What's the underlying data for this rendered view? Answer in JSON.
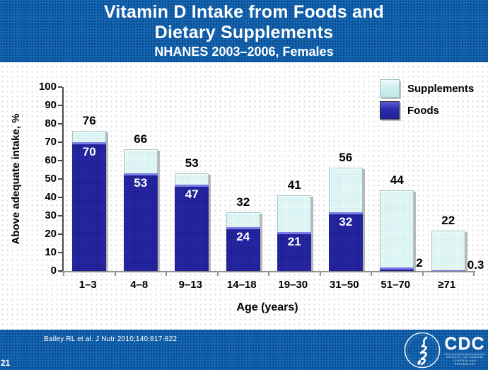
{
  "header": {
    "title_line1": "Vitamin D Intake from Foods and",
    "title_line2": "Dietary Supplements",
    "subtitle": "NHANES 2003–2006, Females"
  },
  "chart_data": {
    "type": "bar",
    "subtype": "stacked",
    "title": "Vitamin D Intake from Foods and Dietary Supplements, NHANES 2003–2006, Females",
    "categories": [
      "1–3",
      "4–8",
      "9–13",
      "14–18",
      "19–30",
      "31–50",
      "51–70",
      "≥71"
    ],
    "series": [
      {
        "name": "Foods",
        "color": "#2a2aae",
        "values": [
          70,
          53,
          47,
          24,
          21,
          32,
          2,
          0.3
        ]
      },
      {
        "name": "Supplements",
        "color": "#cdeeee",
        "values": [
          6,
          13,
          6,
          8,
          20,
          24,
          42,
          21.7
        ]
      }
    ],
    "totals": [
      76,
      66,
      53,
      32,
      41,
      56,
      44,
      22
    ],
    "total_labels": [
      "76",
      "66",
      "53",
      "32",
      "41",
      "56",
      "44",
      "22"
    ],
    "foods_labels": [
      "70",
      "53",
      "47",
      "24",
      "21",
      "32",
      "2",
      "0.3"
    ],
    "foods_label_style": [
      "inside",
      "inside",
      "inside",
      "inside",
      "inside",
      "inside",
      "right",
      "right"
    ],
    "xlabel": "Age (years)",
    "ylabel": "Above adequate intake, %",
    "ylim": [
      0,
      100
    ],
    "ytick_step": 10,
    "grid": false,
    "legend_position": "top-right"
  },
  "footer": {
    "citation": "Bailey RL et al. J Nutr 2010;140:817-822",
    "slide_number": "21",
    "cdc_label": "CDC",
    "cdc_sublabel": "CENTERS FOR DISEASE CONTROL AND PREVENTION"
  }
}
